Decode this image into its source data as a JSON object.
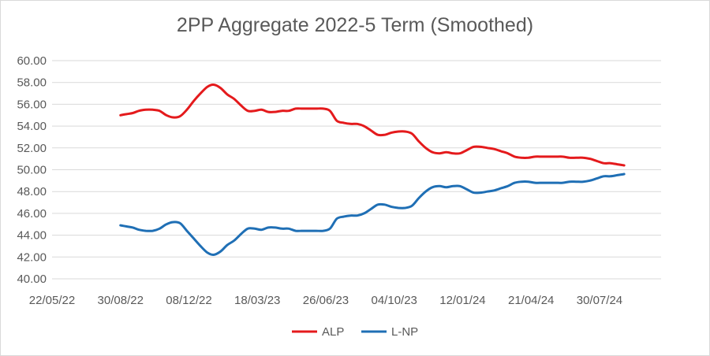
{
  "chart_data": {
    "type": "line",
    "title": "2PP Aggregate 2022-5 Term (Smoothed)",
    "xlabel": "",
    "ylabel": "",
    "ylim": [
      40,
      60
    ],
    "yticks": [
      "40.00",
      "42.00",
      "44.00",
      "46.00",
      "48.00",
      "50.00",
      "52.00",
      "54.00",
      "56.00",
      "58.00",
      "60.00"
    ],
    "xlim": [
      "2022-05-22",
      "2024-10-28"
    ],
    "xticks": [
      "22/05/22",
      "30/08/22",
      "08/12/22",
      "18/03/23",
      "26/06/23",
      "04/10/23",
      "12/01/24",
      "21/04/24",
      "30/07/24"
    ],
    "grid": true,
    "legend": "bottom",
    "series": [
      {
        "name": "ALP",
        "color": "#e41a1c",
        "x": [
          "2022-08-30",
          "2022-09-08",
          "2022-09-17",
          "2022-09-26",
          "2022-10-06",
          "2022-10-16",
          "2022-10-26",
          "2022-11-05",
          "2022-11-15",
          "2022-11-25",
          "2022-12-05",
          "2022-12-15",
          "2022-12-25",
          "2023-01-04",
          "2023-01-13",
          "2023-01-23",
          "2023-02-02",
          "2023-02-12",
          "2023-02-22",
          "2023-03-04",
          "2023-03-14",
          "2023-03-24",
          "2023-04-03",
          "2023-04-13",
          "2023-04-23",
          "2023-05-03",
          "2023-05-13",
          "2023-05-23",
          "2023-06-02",
          "2023-06-12",
          "2023-06-22",
          "2023-07-02",
          "2023-07-12",
          "2023-07-22",
          "2023-08-01",
          "2023-08-11",
          "2023-08-21",
          "2023-08-31",
          "2023-09-10",
          "2023-09-20",
          "2023-09-30",
          "2023-10-10",
          "2023-10-20",
          "2023-10-30",
          "2023-11-09",
          "2023-11-19",
          "2023-11-29",
          "2023-12-09",
          "2023-12-19",
          "2023-12-29",
          "2024-01-08",
          "2024-01-18",
          "2024-01-28",
          "2024-02-07",
          "2024-02-17",
          "2024-02-27",
          "2024-03-08",
          "2024-03-18",
          "2024-03-28",
          "2024-04-07",
          "2024-04-17",
          "2024-04-27",
          "2024-05-07",
          "2024-05-17",
          "2024-05-27",
          "2024-06-06",
          "2024-06-16",
          "2024-06-26",
          "2024-07-06",
          "2024-07-16",
          "2024-07-26",
          "2024-08-05",
          "2024-08-15",
          "2024-08-25",
          "2024-09-04"
        ],
        "values": [
          55.0,
          55.1,
          55.2,
          55.4,
          55.5,
          55.5,
          55.4,
          55.0,
          54.8,
          54.9,
          55.5,
          56.3,
          57.0,
          57.6,
          57.8,
          57.5,
          56.9,
          56.5,
          55.9,
          55.4,
          55.4,
          55.5,
          55.3,
          55.3,
          55.4,
          55.4,
          55.6,
          55.6,
          55.6,
          55.6,
          55.6,
          55.4,
          54.5,
          54.3,
          54.2,
          54.2,
          54.0,
          53.6,
          53.2,
          53.2,
          53.4,
          53.5,
          53.5,
          53.3,
          52.6,
          52.0,
          51.6,
          51.5,
          51.6,
          51.5,
          51.5,
          51.8,
          52.1,
          52.1,
          52.0,
          51.9,
          51.7,
          51.5,
          51.2,
          51.1,
          51.1,
          51.2,
          51.2,
          51.2,
          51.2,
          51.2,
          51.1,
          51.1,
          51.1,
          51.0,
          50.8,
          50.6,
          50.6,
          50.5,
          50.4
        ]
      },
      {
        "name": "L-NP",
        "color": "#1f6fb5",
        "x": [
          "2022-08-30",
          "2022-09-08",
          "2022-09-17",
          "2022-09-26",
          "2022-10-06",
          "2022-10-16",
          "2022-10-26",
          "2022-11-05",
          "2022-11-15",
          "2022-11-25",
          "2022-12-05",
          "2022-12-15",
          "2022-12-25",
          "2023-01-04",
          "2023-01-13",
          "2023-01-23",
          "2023-02-02",
          "2023-02-12",
          "2023-02-22",
          "2023-03-04",
          "2023-03-14",
          "2023-03-24",
          "2023-04-03",
          "2023-04-13",
          "2023-04-23",
          "2023-05-03",
          "2023-05-13",
          "2023-05-23",
          "2023-06-02",
          "2023-06-12",
          "2023-06-22",
          "2023-07-02",
          "2023-07-12",
          "2023-07-22",
          "2023-08-01",
          "2023-08-11",
          "2023-08-21",
          "2023-08-31",
          "2023-09-10",
          "2023-09-20",
          "2023-09-30",
          "2023-10-10",
          "2023-10-20",
          "2023-10-30",
          "2023-11-09",
          "2023-11-19",
          "2023-11-29",
          "2023-12-09",
          "2023-12-19",
          "2023-12-29",
          "2024-01-08",
          "2024-01-18",
          "2024-01-28",
          "2024-02-07",
          "2024-02-17",
          "2024-02-27",
          "2024-03-08",
          "2024-03-18",
          "2024-03-28",
          "2024-04-07",
          "2024-04-17",
          "2024-04-27",
          "2024-05-07",
          "2024-05-17",
          "2024-05-27",
          "2024-06-06",
          "2024-06-16",
          "2024-06-26",
          "2024-07-06",
          "2024-07-16",
          "2024-07-26",
          "2024-08-05",
          "2024-08-15",
          "2024-08-25",
          "2024-09-04"
        ],
        "values": [
          44.9,
          44.8,
          44.7,
          44.5,
          44.4,
          44.4,
          44.6,
          45.0,
          45.2,
          45.1,
          44.4,
          43.7,
          43.0,
          42.4,
          42.2,
          42.5,
          43.1,
          43.5,
          44.1,
          44.6,
          44.6,
          44.5,
          44.7,
          44.7,
          44.6,
          44.6,
          44.4,
          44.4,
          44.4,
          44.4,
          44.4,
          44.6,
          45.5,
          45.7,
          45.8,
          45.8,
          46.0,
          46.4,
          46.8,
          46.8,
          46.6,
          46.5,
          46.5,
          46.7,
          47.4,
          48.0,
          48.4,
          48.5,
          48.4,
          48.5,
          48.5,
          48.2,
          47.9,
          47.9,
          48.0,
          48.1,
          48.3,
          48.5,
          48.8,
          48.9,
          48.9,
          48.8,
          48.8,
          48.8,
          48.8,
          48.8,
          48.9,
          48.9,
          48.9,
          49.0,
          49.2,
          49.4,
          49.4,
          49.5,
          49.6
        ]
      }
    ]
  }
}
